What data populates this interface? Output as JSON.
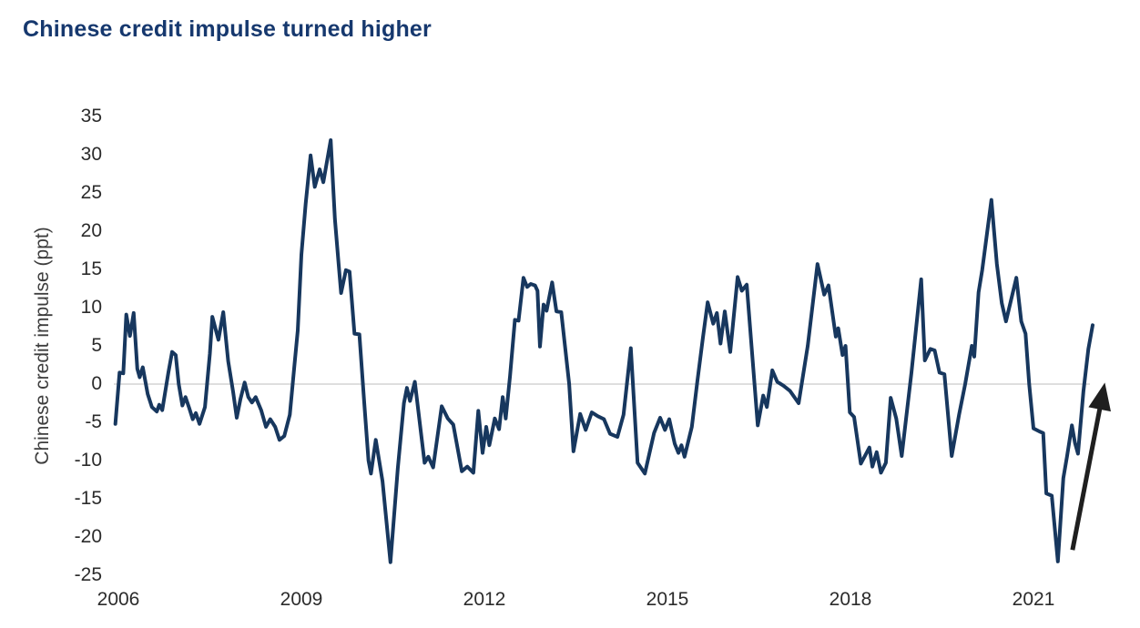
{
  "header": {
    "title": "Chinese credit impulse turned higher"
  },
  "colors": {
    "title": "#16386e",
    "line": "#17375e",
    "zero_gridline": "#c9c9c9",
    "tick_text": "#2b2b2b",
    "axis_label_text": "#3d3d3d",
    "arrow": "#1f1f1f",
    "background": "#ffffff"
  },
  "chart_data": {
    "type": "line",
    "title": "Chinese credit impulse turned higher",
    "xlabel": "",
    "ylabel": "Chinese credit impulse (ppt)",
    "ylim": [
      -25,
      35
    ],
    "xlim": [
      2005.93,
      2022.2
    ],
    "y_ticks": [
      35,
      30,
      25,
      20,
      15,
      10,
      5,
      0,
      -5,
      -10,
      -15,
      -20,
      -25
    ],
    "x_ticks": [
      2006,
      2009,
      2012,
      2015,
      2018,
      2021
    ],
    "grid": "horizontal zero line only",
    "legend": "none",
    "series": [
      {
        "name": "Chinese credit impulse (ppt)",
        "points": [
          [
            2005.95,
            -5.2
          ],
          [
            2006.02,
            1.5
          ],
          [
            2006.08,
            1.4
          ],
          [
            2006.13,
            9.1
          ],
          [
            2006.19,
            6.3
          ],
          [
            2006.25,
            9.3
          ],
          [
            2006.31,
            2.0
          ],
          [
            2006.35,
            0.9
          ],
          [
            2006.4,
            2.2
          ],
          [
            2006.48,
            -1.3
          ],
          [
            2006.55,
            -3.0
          ],
          [
            2006.63,
            -3.6
          ],
          [
            2006.67,
            -2.7
          ],
          [
            2006.72,
            -3.4
          ],
          [
            2006.82,
            1.5
          ],
          [
            2006.88,
            4.2
          ],
          [
            2006.94,
            3.8
          ],
          [
            2006.99,
            0.0
          ],
          [
            2007.05,
            -2.8
          ],
          [
            2007.1,
            -1.7
          ],
          [
            2007.16,
            -3.1
          ],
          [
            2007.22,
            -4.6
          ],
          [
            2007.27,
            -3.8
          ],
          [
            2007.33,
            -5.2
          ],
          [
            2007.42,
            -3.0
          ],
          [
            2007.5,
            4.0
          ],
          [
            2007.54,
            8.8
          ],
          [
            2007.64,
            5.8
          ],
          [
            2007.72,
            9.4
          ],
          [
            2007.8,
            3.0
          ],
          [
            2007.88,
            -1.0
          ],
          [
            2007.94,
            -4.4
          ],
          [
            2008.0,
            -2.0
          ],
          [
            2008.07,
            0.2
          ],
          [
            2008.13,
            -1.7
          ],
          [
            2008.19,
            -2.4
          ],
          [
            2008.25,
            -1.7
          ],
          [
            2008.34,
            -3.4
          ],
          [
            2008.42,
            -5.6
          ],
          [
            2008.49,
            -4.6
          ],
          [
            2008.57,
            -5.6
          ],
          [
            2008.64,
            -7.3
          ],
          [
            2008.72,
            -6.8
          ],
          [
            2008.81,
            -4.0
          ],
          [
            2008.88,
            2.0
          ],
          [
            2008.94,
            7.0
          ],
          [
            2009.0,
            16.9
          ],
          [
            2009.07,
            23.6
          ],
          [
            2009.15,
            29.9
          ],
          [
            2009.22,
            25.8
          ],
          [
            2009.3,
            28.1
          ],
          [
            2009.36,
            26.4
          ],
          [
            2009.48,
            31.9
          ],
          [
            2009.55,
            21.6
          ],
          [
            2009.61,
            15.7
          ],
          [
            2009.65,
            11.9
          ],
          [
            2009.73,
            14.9
          ],
          [
            2009.79,
            14.7
          ],
          [
            2009.87,
            6.6
          ],
          [
            2009.95,
            6.5
          ],
          [
            2010.03,
            -2.4
          ],
          [
            2010.1,
            -10.0
          ],
          [
            2010.14,
            -11.7
          ],
          [
            2010.22,
            -7.3
          ],
          [
            2010.33,
            -12.7
          ],
          [
            2010.46,
            -23.3
          ],
          [
            2010.58,
            -11.0
          ],
          [
            2010.68,
            -2.5
          ],
          [
            2010.73,
            -0.5
          ],
          [
            2010.78,
            -2.2
          ],
          [
            2010.86,
            0.3
          ],
          [
            2011.02,
            -10.3
          ],
          [
            2011.08,
            -9.5
          ],
          [
            2011.16,
            -10.9
          ],
          [
            2011.3,
            -2.9
          ],
          [
            2011.4,
            -4.5
          ],
          [
            2011.49,
            -5.3
          ],
          [
            2011.63,
            -11.4
          ],
          [
            2011.72,
            -10.8
          ],
          [
            2011.82,
            -11.6
          ],
          [
            2011.9,
            -3.5
          ],
          [
            2011.97,
            -9.0
          ],
          [
            2012.03,
            -5.6
          ],
          [
            2012.08,
            -8.0
          ],
          [
            2012.17,
            -4.5
          ],
          [
            2012.24,
            -5.9
          ],
          [
            2012.3,
            -1.7
          ],
          [
            2012.35,
            -4.5
          ],
          [
            2012.42,
            1.0
          ],
          [
            2012.5,
            8.4
          ],
          [
            2012.56,
            8.3
          ],
          [
            2012.64,
            13.9
          ],
          [
            2012.7,
            12.7
          ],
          [
            2012.76,
            13.1
          ],
          [
            2012.83,
            12.9
          ],
          [
            2012.87,
            12.2
          ],
          [
            2012.91,
            4.9
          ],
          [
            2012.97,
            10.4
          ],
          [
            2013.02,
            9.6
          ],
          [
            2013.11,
            13.3
          ],
          [
            2013.18,
            9.5
          ],
          [
            2013.26,
            9.4
          ],
          [
            2013.39,
            0.0
          ],
          [
            2013.46,
            -8.8
          ],
          [
            2013.57,
            -3.9
          ],
          [
            2013.66,
            -6.0
          ],
          [
            2013.76,
            -3.7
          ],
          [
            2013.86,
            -4.2
          ],
          [
            2013.96,
            -4.6
          ],
          [
            2014.06,
            -6.5
          ],
          [
            2014.18,
            -6.9
          ],
          [
            2014.28,
            -4.0
          ],
          [
            2014.4,
            4.7
          ],
          [
            2014.51,
            -10.3
          ],
          [
            2014.63,
            -11.7
          ],
          [
            2014.78,
            -6.4
          ],
          [
            2014.88,
            -4.4
          ],
          [
            2014.96,
            -6.0
          ],
          [
            2015.03,
            -4.6
          ],
          [
            2015.12,
            -7.8
          ],
          [
            2015.18,
            -9.0
          ],
          [
            2015.23,
            -8.0
          ],
          [
            2015.28,
            -9.5
          ],
          [
            2015.4,
            -5.6
          ],
          [
            2015.49,
            0.3
          ],
          [
            2015.58,
            6.0
          ],
          [
            2015.66,
            10.7
          ],
          [
            2015.75,
            7.9
          ],
          [
            2015.81,
            9.3
          ],
          [
            2015.87,
            5.3
          ],
          [
            2015.94,
            9.5
          ],
          [
            2016.03,
            4.2
          ],
          [
            2016.15,
            14.0
          ],
          [
            2016.22,
            12.2
          ],
          [
            2016.3,
            13.0
          ],
          [
            2016.48,
            -5.4
          ],
          [
            2016.57,
            -1.5
          ],
          [
            2016.63,
            -3.0
          ],
          [
            2016.72,
            1.8
          ],
          [
            2016.8,
            0.3
          ],
          [
            2016.9,
            -0.2
          ],
          [
            2017.01,
            -0.9
          ],
          [
            2017.15,
            -2.5
          ],
          [
            2017.3,
            5.0
          ],
          [
            2017.46,
            15.7
          ],
          [
            2017.57,
            11.7
          ],
          [
            2017.64,
            12.9
          ],
          [
            2017.76,
            6.2
          ],
          [
            2017.8,
            7.3
          ],
          [
            2017.87,
            3.8
          ],
          [
            2017.92,
            5.0
          ],
          [
            2017.99,
            -3.7
          ],
          [
            2018.06,
            -4.3
          ],
          [
            2018.17,
            -10.4
          ],
          [
            2018.25,
            -9.2
          ],
          [
            2018.31,
            -8.3
          ],
          [
            2018.36,
            -10.8
          ],
          [
            2018.43,
            -8.9
          ],
          [
            2018.5,
            -11.6
          ],
          [
            2018.58,
            -10.3
          ],
          [
            2018.66,
            -1.8
          ],
          [
            2018.75,
            -4.5
          ],
          [
            2018.84,
            -9.4
          ],
          [
            2019.0,
            1.5
          ],
          [
            2019.16,
            13.7
          ],
          [
            2019.22,
            3.1
          ],
          [
            2019.31,
            4.6
          ],
          [
            2019.38,
            4.4
          ],
          [
            2019.46,
            1.5
          ],
          [
            2019.54,
            1.3
          ],
          [
            2019.66,
            -9.4
          ],
          [
            2019.78,
            -4.0
          ],
          [
            2019.88,
            0.0
          ],
          [
            2019.99,
            5.0
          ],
          [
            2020.03,
            3.6
          ],
          [
            2020.1,
            12.0
          ],
          [
            2020.16,
            14.9
          ],
          [
            2020.31,
            24.1
          ],
          [
            2020.4,
            15.7
          ],
          [
            2020.48,
            10.6
          ],
          [
            2020.55,
            8.2
          ],
          [
            2020.72,
            13.9
          ],
          [
            2020.8,
            8.2
          ],
          [
            2020.87,
            6.6
          ],
          [
            2020.93,
            0.0
          ],
          [
            2021.0,
            -5.8
          ],
          [
            2021.1,
            -6.2
          ],
          [
            2021.16,
            -6.4
          ],
          [
            2021.21,
            -14.3
          ],
          [
            2021.3,
            -14.6
          ],
          [
            2021.4,
            -23.2
          ],
          [
            2021.49,
            -12.3
          ],
          [
            2021.55,
            -9.5
          ],
          [
            2021.63,
            -5.4
          ],
          [
            2021.68,
            -7.7
          ],
          [
            2021.73,
            -9.1
          ],
          [
            2021.82,
            -0.9
          ],
          [
            2021.9,
            4.6
          ],
          [
            2021.97,
            7.7
          ]
        ]
      }
    ],
    "annotations": [
      {
        "type": "arrow",
        "from": [
          2021.64,
          -21.7
        ],
        "to": [
          2022.17,
          0.2
        ],
        "meaning": "credit impulse turning higher"
      }
    ]
  }
}
